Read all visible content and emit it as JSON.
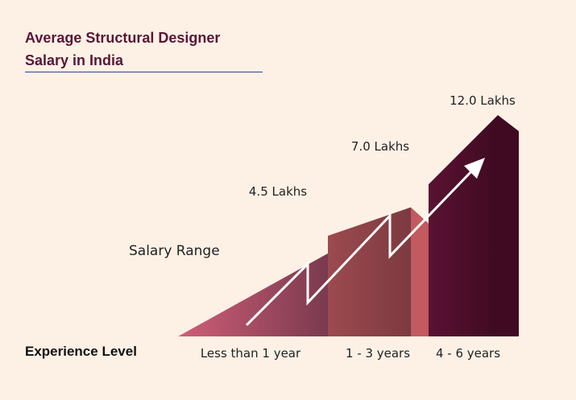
{
  "title_lines": [
    "Average Structural Designer",
    "Salary in India"
  ],
  "chart_data": {
    "type": "bar",
    "title": "Average Structural Designer Salary in India",
    "xlabel": "Experience Level",
    "ylabel": "Salary Range",
    "categories": [
      "Less than 1 year",
      "1 - 3 years",
      "4 - 6 years"
    ],
    "values": [
      4.5,
      7.0,
      12.0
    ],
    "value_labels": [
      "4.5 Lakhs",
      "7.0 Lakhs",
      "12.0 Lakhs"
    ],
    "ylim": [
      0,
      12.0
    ],
    "grid": false,
    "legend": "none",
    "colors": {
      "bar1_light": "#cf5e78",
      "bar1_dark": "#7a3a4e",
      "bar2_light": "#9c4a4f",
      "bar2_dark": "#7c3a40",
      "bar3_light": "#5a1232",
      "bar3_dark": "#3f0a22",
      "arrow": "#ffffff"
    }
  }
}
